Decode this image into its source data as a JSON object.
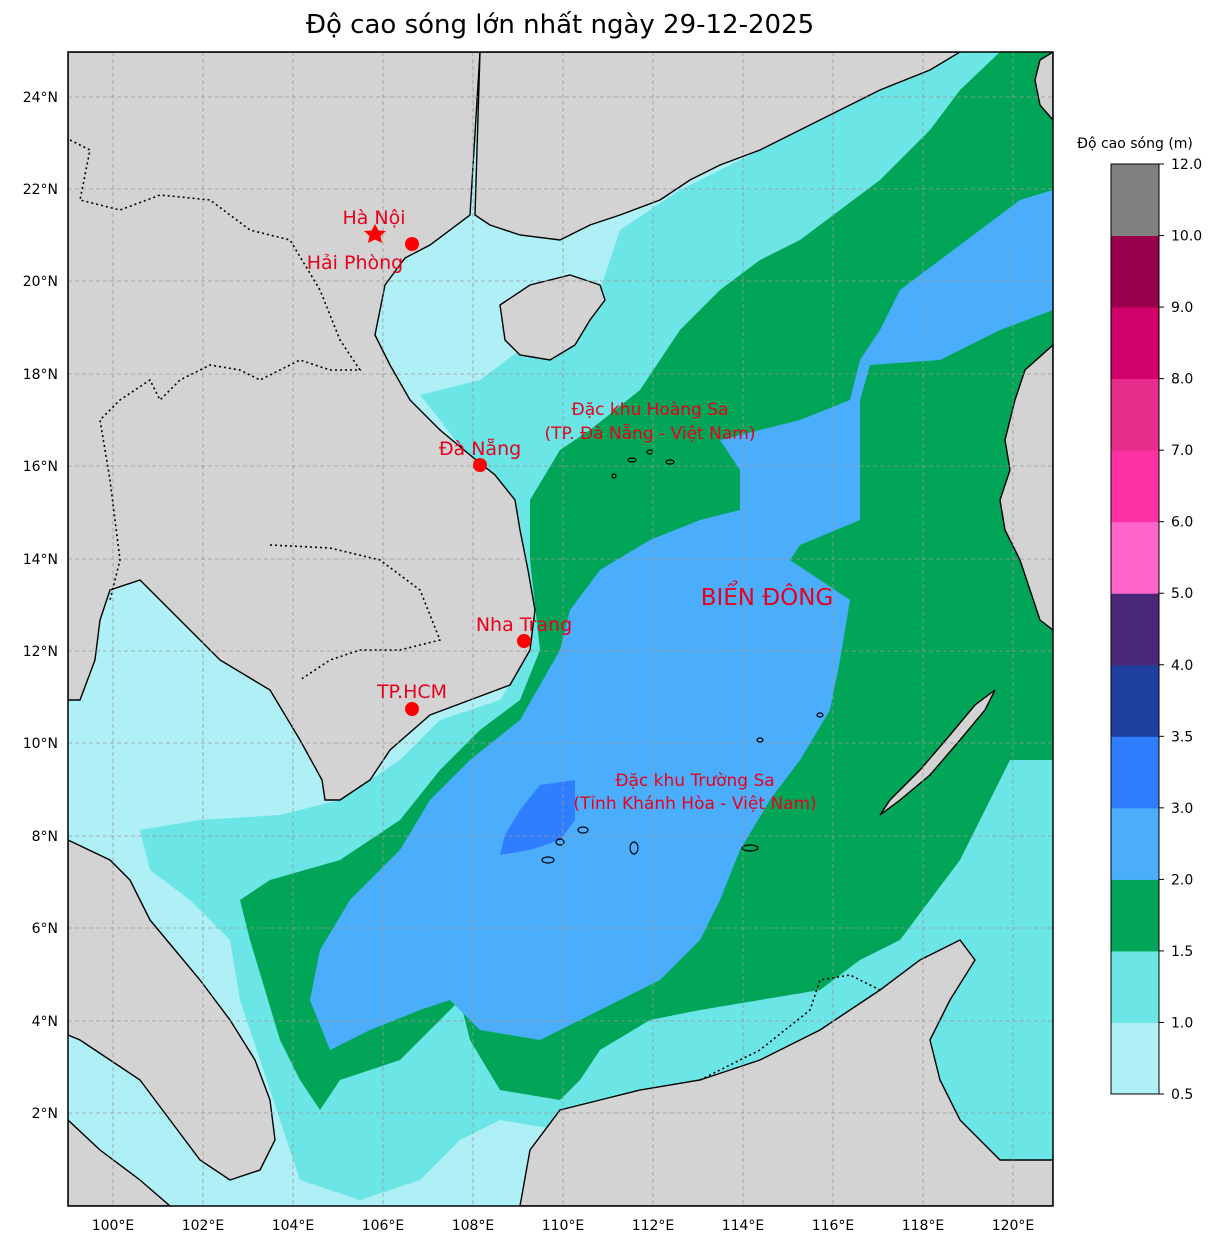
{
  "title": "Độ cao sóng lớn nhất ngày 29-12-2025",
  "colorbar": {
    "label": "Độ cao sóng (m)",
    "levels": [
      "0.5",
      "1.0",
      "1.5",
      "2.0",
      "3.0",
      "3.5",
      "4.0",
      "5.0",
      "6.0",
      "7.0",
      "8.0",
      "9.0",
      "10.0",
      "12.0"
    ],
    "colors": [
      "#aff0f7",
      "#6be5e5",
      "#00a558",
      "#4aaefd",
      "#2f7eff",
      "#1e3f9e",
      "#4a2777",
      "#ff64c8",
      "#ff32a5",
      "#e62d8c",
      "#d20069",
      "#99004c",
      "#808080"
    ]
  },
  "axes": {
    "lon_ticks": [
      "100°E",
      "102°E",
      "104°E",
      "106°E",
      "108°E",
      "110°E",
      "112°E",
      "114°E",
      "116°E",
      "118°E",
      "120°E"
    ],
    "lat_ticks": [
      "24°N",
      "22°N",
      "20°N",
      "18°N",
      "16°N",
      "14°N",
      "12°N",
      "10°N",
      "8°N",
      "6°N",
      "4°N",
      "2°N"
    ]
  },
  "cities": [
    {
      "name": "Hà Nội",
      "marker": "star"
    },
    {
      "name": "Hải Phòng",
      "marker": "dot"
    },
    {
      "name": "Đà Nẵng",
      "marker": "dot"
    },
    {
      "name": "Nha Trang",
      "marker": "dot"
    },
    {
      "name": "TP.HCM",
      "marker": "dot"
    }
  ],
  "regions": {
    "hoang_sa_line1": "Đặc khu Hoàng Sa",
    "hoang_sa_line2": "(TP. Đà Nẵng - Việt Nam)",
    "truong_sa_line1": "Đặc khu Trường Sa",
    "truong_sa_line2": "(Tỉnh Khánh Hòa - Việt Nam)",
    "sea_name": "BIỂN ĐÔNG"
  },
  "colors": {
    "land": "#d3d3d3",
    "marker": "#ff0000",
    "label": "#e8001c"
  }
}
